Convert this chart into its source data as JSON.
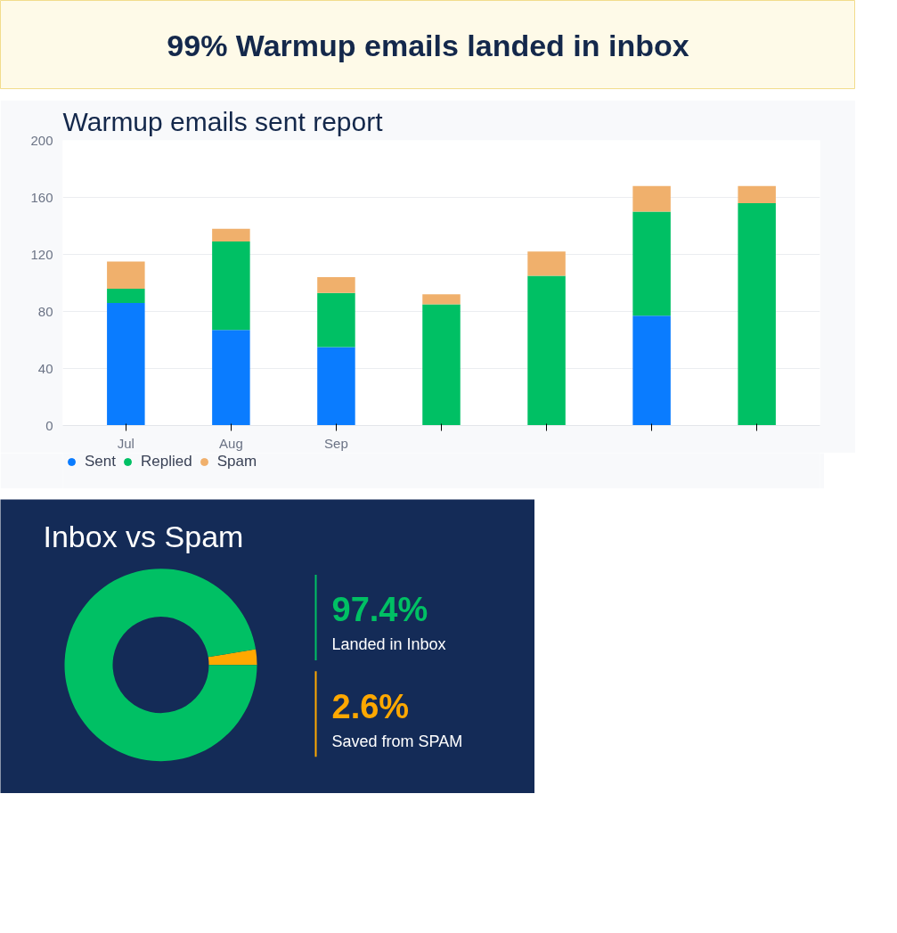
{
  "chart_data": [
    {
      "type": "other",
      "title": "99% Warmup emails landed in inbox"
    },
    {
      "type": "bar",
      "title": "Warmup emails sent report",
      "stacked": true,
      "categories": [
        "Jul",
        "Aug",
        "Sep",
        null,
        null,
        null,
        null
      ],
      "series": [
        {
          "name": "Sent",
          "color": "#0a7cff",
          "values": [
            86,
            67,
            55,
            null,
            null,
            77,
            null
          ]
        },
        {
          "name": "Replied",
          "color": "#00c064",
          "values": [
            10,
            62,
            38,
            85,
            105,
            73,
            156
          ]
        },
        {
          "name": "Spam",
          "color": "#f0b06c",
          "values": [
            19,
            9,
            11,
            7,
            17,
            18,
            12
          ]
        }
      ],
      "ylim": [
        0,
        200
      ],
      "yticks": [
        0,
        40,
        80,
        120,
        160,
        200
      ],
      "grid": "y",
      "legend": "bottom left"
    },
    {
      "type": "donut",
      "title": "Inbox vs Spam",
      "categories": [
        "Landed in Inbox",
        "Saved from SPAM"
      ],
      "values": [
        97.4,
        2.6
      ],
      "colors": [
        "#00c064",
        "#ffa800"
      ],
      "value_labels": [
        "97.4%",
        "2.6%"
      ]
    }
  ]
}
